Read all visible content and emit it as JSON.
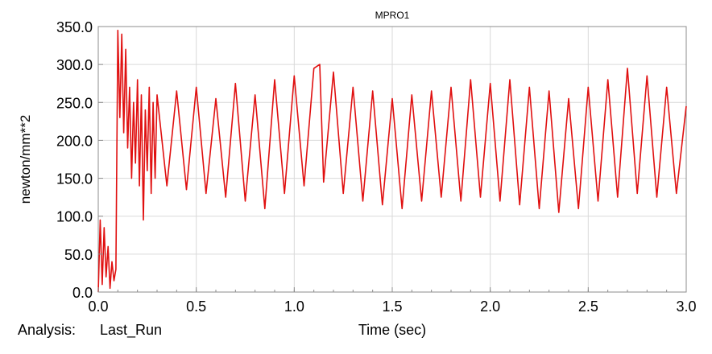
{
  "chart_data": {
    "type": "line",
    "title": "MPRO1",
    "xlabel": "Time (sec)",
    "ylabel": "newton/mm**2",
    "analysis_label": "Analysis:",
    "analysis_value": "Last_Run",
    "xlim": [
      0.0,
      3.0
    ],
    "ylim": [
      0.0,
      350.0
    ],
    "x_ticks": [
      "0.0",
      "0.5",
      "1.0",
      "1.5",
      "2.0",
      "2.5",
      "3.0"
    ],
    "y_ticks": [
      "0.0",
      "50.0",
      "100.0",
      "150.0",
      "200.0",
      "250.0",
      "300.0",
      "350.0"
    ],
    "x_tick_values": [
      0.0,
      0.5,
      1.0,
      1.5,
      2.0,
      2.5,
      3.0
    ],
    "y_tick_values": [
      0.0,
      50.0,
      100.0,
      150.0,
      200.0,
      250.0,
      300.0,
      350.0
    ],
    "grid": true,
    "series_color": "#e01010",
    "series": [
      {
        "name": "",
        "x": [
          0.0,
          0.01,
          0.02,
          0.03,
          0.04,
          0.05,
          0.06,
          0.07,
          0.08,
          0.09,
          0.1,
          0.11,
          0.12,
          0.13,
          0.14,
          0.15,
          0.16,
          0.17,
          0.18,
          0.19,
          0.2,
          0.21,
          0.22,
          0.23,
          0.24,
          0.25,
          0.26,
          0.27,
          0.28,
          0.29,
          0.3,
          0.35,
          0.4,
          0.45,
          0.5,
          0.55,
          0.6,
          0.65,
          0.7,
          0.75,
          0.8,
          0.85,
          0.9,
          0.95,
          1.0,
          1.05,
          1.1,
          1.13,
          1.15,
          1.2,
          1.25,
          1.3,
          1.35,
          1.4,
          1.45,
          1.5,
          1.55,
          1.6,
          1.65,
          1.7,
          1.75,
          1.8,
          1.85,
          1.9,
          1.95,
          2.0,
          2.05,
          2.1,
          2.15,
          2.2,
          2.25,
          2.3,
          2.35,
          2.4,
          2.45,
          2.5,
          2.55,
          2.6,
          2.65,
          2.7,
          2.75,
          2.8,
          2.85,
          2.9,
          2.95,
          3.0
        ],
        "y": [
          0,
          95,
          10,
          85,
          20,
          60,
          5,
          40,
          15,
          30,
          345,
          230,
          340,
          210,
          320,
          190,
          270,
          150,
          250,
          170,
          280,
          140,
          260,
          95,
          240,
          160,
          270,
          130,
          250,
          150,
          260,
          140,
          265,
          135,
          270,
          130,
          255,
          125,
          275,
          120,
          260,
          110,
          280,
          130,
          285,
          140,
          295,
          300,
          145,
          290,
          130,
          270,
          120,
          265,
          115,
          255,
          110,
          260,
          120,
          265,
          125,
          270,
          120,
          280,
          125,
          275,
          120,
          280,
          115,
          270,
          110,
          265,
          105,
          255,
          110,
          270,
          120,
          280,
          125,
          295,
          130,
          285,
          125,
          270,
          130,
          245
        ]
      }
    ]
  }
}
